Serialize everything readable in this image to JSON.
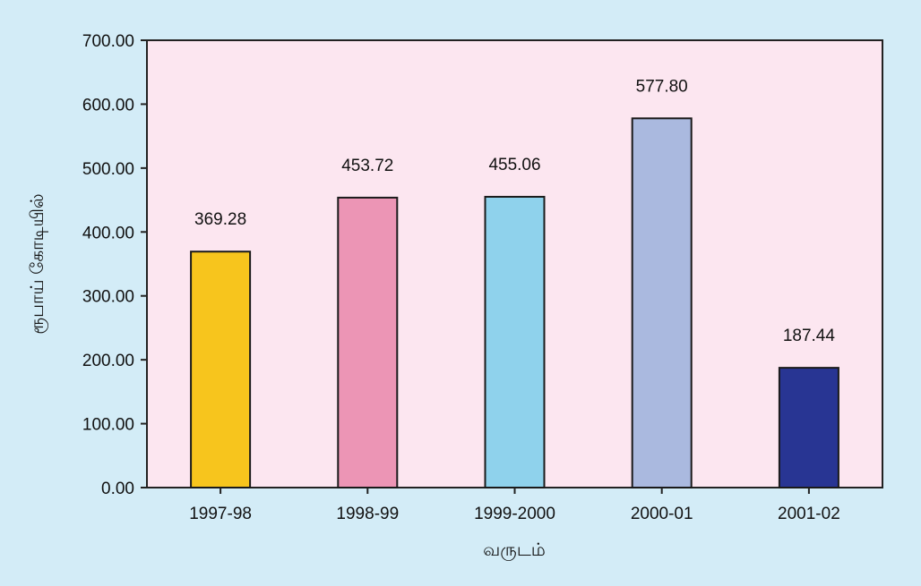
{
  "chart_data": {
    "type": "bar",
    "title": "",
    "xlabel": "வருடம்",
    "ylabel": "ரூபாய் கோடியில்",
    "categories": [
      "1997-98",
      "1998-99",
      "1999-2000",
      "2000-01",
      "2001-02"
    ],
    "values": [
      369.28,
      453.72,
      455.06,
      577.8,
      187.44
    ],
    "value_labels": [
      "369.28",
      "453.72",
      "455.06",
      "577.80",
      "187.44"
    ],
    "ylim": [
      0,
      700
    ],
    "yticks": [
      "0.00",
      "100.00",
      "200.00",
      "300.00",
      "400.00",
      "500.00",
      "600.00",
      "700.00"
    ],
    "bar_colors": [
      "#f7c51d",
      "#ec95b5",
      "#8fd2ec",
      "#aab9df",
      "#283593"
    ],
    "plot_background": "#fce6f0",
    "page_background": "#d3ecf7",
    "grid": false,
    "legend": "none"
  }
}
